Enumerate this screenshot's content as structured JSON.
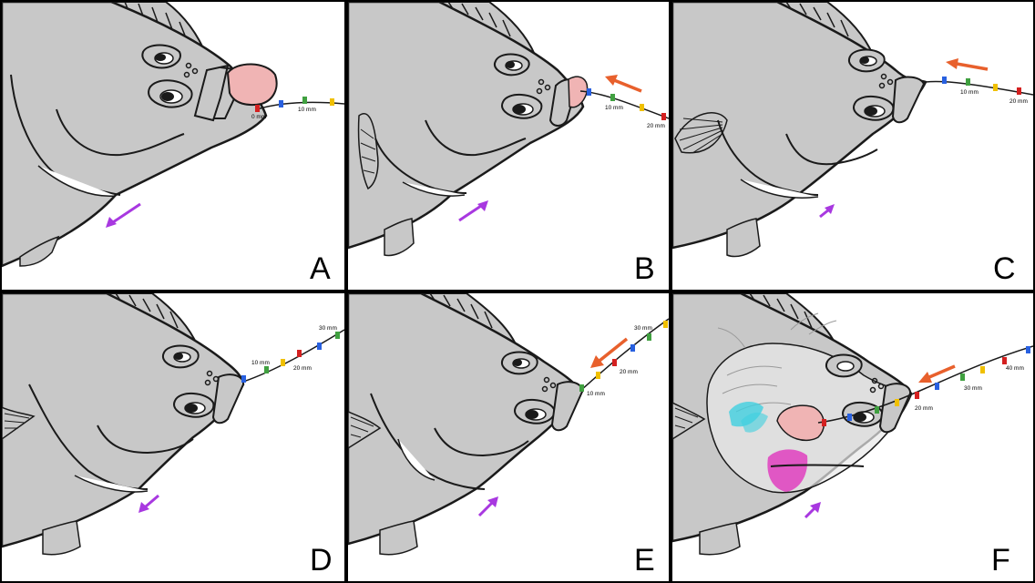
{
  "colors": {
    "fish_body": "#c8c8c8",
    "outline": "#1a1a1a",
    "prey": "#f0b4b4",
    "arrow_orange": "#e8602c",
    "arrow_purple": "#a838e0",
    "marker_red": "#d42020",
    "marker_blue": "#2860e0",
    "marker_green": "#40a040",
    "marker_yellow": "#f0c000",
    "gill_cyan": "#40d0e0",
    "bone_magenta": "#e040c0",
    "background": "#000000",
    "panel_bg": "#ffffff"
  },
  "panels": [
    {
      "label": "A",
      "scale_labels": [
        {
          "text": "0 mm"
        },
        {
          "text": "10 mm"
        }
      ]
    },
    {
      "label": "B",
      "scale_labels": [
        {
          "text": "10 mm"
        },
        {
          "text": "20 mm"
        }
      ]
    },
    {
      "label": "C",
      "scale_labels": [
        {
          "text": "10 mm"
        },
        {
          "text": "20 mm"
        }
      ]
    },
    {
      "label": "D",
      "scale_labels": [
        {
          "text": "10 mm"
        },
        {
          "text": "20 mm"
        },
        {
          "text": "30 mm"
        }
      ]
    },
    {
      "label": "E",
      "scale_labels": [
        {
          "text": "10 mm"
        },
        {
          "text": "20 mm"
        },
        {
          "text": "30 mm"
        }
      ]
    },
    {
      "label": "F",
      "scale_labels": [
        {
          "text": "20 mm"
        },
        {
          "text": "30 mm"
        },
        {
          "text": "40 mm"
        }
      ]
    }
  ]
}
